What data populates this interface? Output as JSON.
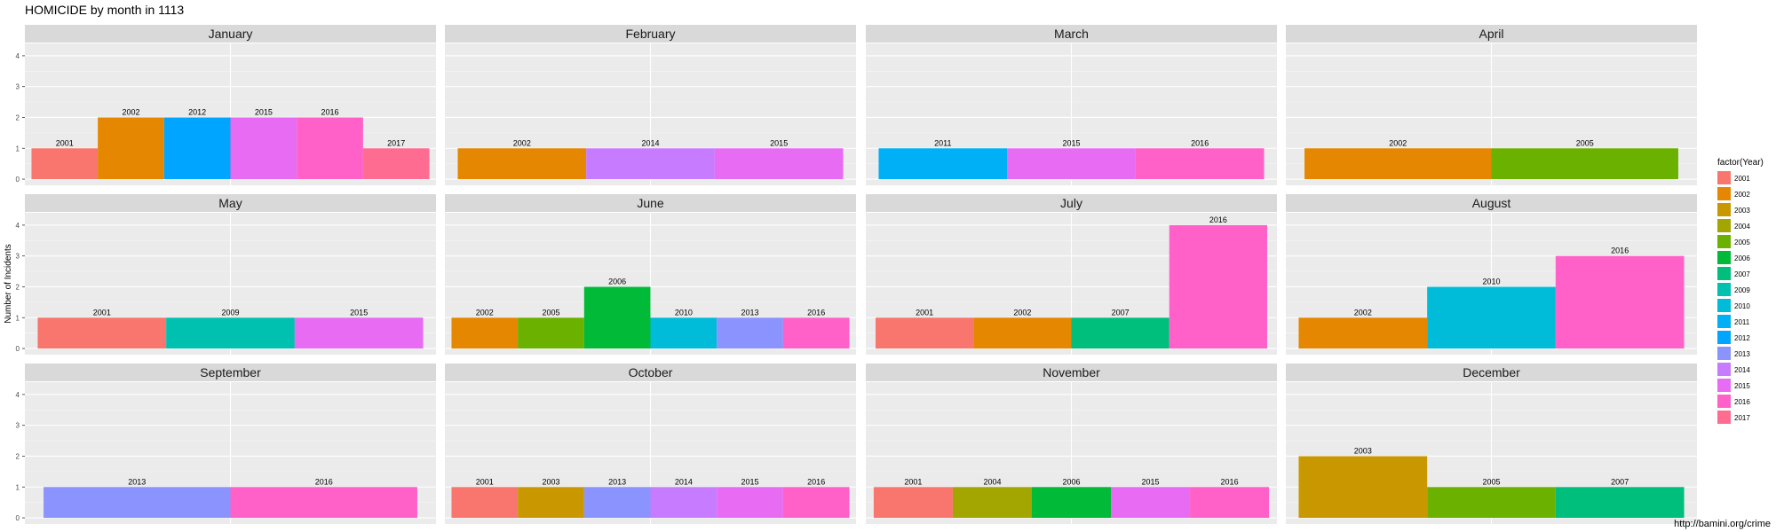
{
  "chart_data": {
    "type": "bar",
    "title": "HOMICIDE by month in 1113",
    "xlabel": "",
    "ylabel": "Number of Incidents",
    "ylim": [
      0,
      4
    ],
    "yticks": [
      0,
      1,
      2,
      3,
      4
    ],
    "grid": true,
    "legend": {
      "title": "factor(Year)",
      "position": "right"
    },
    "facets": [
      {
        "month": "January",
        "bars": [
          {
            "year": "2001",
            "value": 1
          },
          {
            "year": "2002",
            "value": 2
          },
          {
            "year": "2012",
            "value": 2
          },
          {
            "year": "2015",
            "value": 2
          },
          {
            "year": "2016",
            "value": 2
          },
          {
            "year": "2017",
            "value": 1
          }
        ]
      },
      {
        "month": "February",
        "bars": [
          {
            "year": "2002",
            "value": 1
          },
          {
            "year": "2014",
            "value": 1
          },
          {
            "year": "2015",
            "value": 1
          }
        ]
      },
      {
        "month": "March",
        "bars": [
          {
            "year": "2011",
            "value": 1
          },
          {
            "year": "2015",
            "value": 1
          },
          {
            "year": "2016",
            "value": 1
          }
        ]
      },
      {
        "month": "April",
        "bars": [
          {
            "year": "2002",
            "value": 1
          },
          {
            "year": "2005",
            "value": 1
          }
        ]
      },
      {
        "month": "May",
        "bars": [
          {
            "year": "2001",
            "value": 1
          },
          {
            "year": "2009",
            "value": 1
          },
          {
            "year": "2015",
            "value": 1
          }
        ]
      },
      {
        "month": "June",
        "bars": [
          {
            "year": "2002",
            "value": 1
          },
          {
            "year": "2005",
            "value": 1
          },
          {
            "year": "2006",
            "value": 2
          },
          {
            "year": "2010",
            "value": 1
          },
          {
            "year": "2013",
            "value": 1
          },
          {
            "year": "2016",
            "value": 1
          }
        ]
      },
      {
        "month": "July",
        "bars": [
          {
            "year": "2001",
            "value": 1
          },
          {
            "year": "2002",
            "value": 1
          },
          {
            "year": "2007",
            "value": 1
          },
          {
            "year": "2016",
            "value": 4
          }
        ]
      },
      {
        "month": "August",
        "bars": [
          {
            "year": "2002",
            "value": 1
          },
          {
            "year": "2010",
            "value": 2
          },
          {
            "year": "2016",
            "value": 3
          }
        ]
      },
      {
        "month": "September",
        "bars": [
          {
            "year": "2013",
            "value": 1
          },
          {
            "year": "2016",
            "value": 1
          }
        ]
      },
      {
        "month": "October",
        "bars": [
          {
            "year": "2001",
            "value": 1
          },
          {
            "year": "2003",
            "value": 1
          },
          {
            "year": "2013",
            "value": 1
          },
          {
            "year": "2014",
            "value": 1
          },
          {
            "year": "2015",
            "value": 1
          },
          {
            "year": "2016",
            "value": 1
          }
        ]
      },
      {
        "month": "November",
        "bars": [
          {
            "year": "2001",
            "value": 1
          },
          {
            "year": "2004",
            "value": 1
          },
          {
            "year": "2006",
            "value": 1
          },
          {
            "year": "2015",
            "value": 1
          },
          {
            "year": "2016",
            "value": 1
          }
        ]
      },
      {
        "month": "December",
        "bars": [
          {
            "year": "2003",
            "value": 2
          },
          {
            "year": "2005",
            "value": 1
          },
          {
            "year": "2007",
            "value": 1
          }
        ]
      }
    ],
    "legend_items": [
      {
        "year": "2001",
        "color": "#F8766D"
      },
      {
        "year": "2002",
        "color": "#E58700"
      },
      {
        "year": "2003",
        "color": "#C99800"
      },
      {
        "year": "2004",
        "color": "#A3A500"
      },
      {
        "year": "2005",
        "color": "#6BB100"
      },
      {
        "year": "2006",
        "color": "#00BA38"
      },
      {
        "year": "2007",
        "color": "#00BF7D"
      },
      {
        "year": "2009",
        "color": "#00C0AF"
      },
      {
        "year": "2010",
        "color": "#00BCD8"
      },
      {
        "year": "2011",
        "color": "#00B0F6"
      },
      {
        "year": "2012",
        "color": "#00A5FF"
      },
      {
        "year": "2013",
        "color": "#8B93FF"
      },
      {
        "year": "2014",
        "color": "#C77CFF"
      },
      {
        "year": "2015",
        "color": "#E76BF3"
      },
      {
        "year": "2016",
        "color": "#FF61C9"
      },
      {
        "year": "2017",
        "color": "#FF6C91"
      }
    ]
  },
  "caption": "http://bamini.org/crime"
}
